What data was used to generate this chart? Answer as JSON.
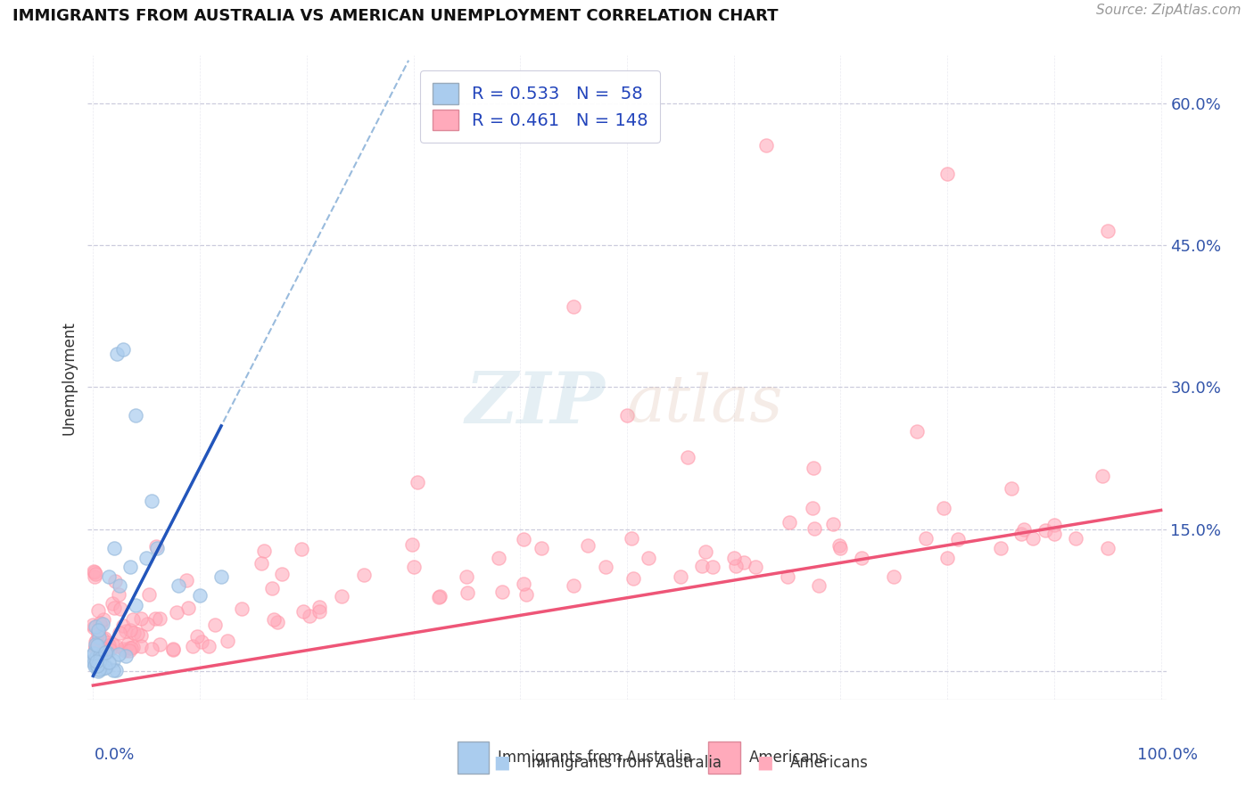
{
  "title": "IMMIGRANTS FROM AUSTRALIA VS AMERICAN UNEMPLOYMENT CORRELATION CHART",
  "source": "Source: ZipAtlas.com",
  "ylabel": "Unemployment",
  "y_ticks": [
    0.0,
    0.15,
    0.3,
    0.45,
    0.6
  ],
  "y_tick_labels": [
    "",
    "15.0%",
    "30.0%",
    "45.0%",
    "60.0%"
  ],
  "xlim": [
    -0.005,
    1.005
  ],
  "ylim": [
    -0.03,
    0.65
  ],
  "legend_r1": "R = 0.533",
  "legend_n1": "N =  58",
  "legend_r2": "R = 0.461",
  "legend_n2": "N = 148",
  "blue_color": "#99BBDD",
  "blue_face_color": "#AACCEE",
  "pink_color": "#FF99AA",
  "pink_face_color": "#FFAABB",
  "blue_line_color": "#2255BB",
  "pink_line_color": "#EE5577",
  "dashed_line_color": "#99BBDD",
  "background_color": "#FFFFFF",
  "grid_color": "#CCCCDD",
  "title_color": "#111111",
  "axis_label_color": "#3355AA",
  "right_label_color": "#3355AA"
}
